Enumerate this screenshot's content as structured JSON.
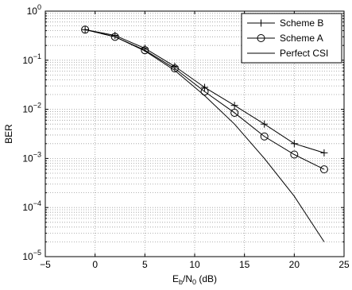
{
  "chart_data": {
    "type": "line",
    "title": "",
    "xlabel": {
      "base": "E",
      "sub1": "b",
      "mid": "/N",
      "sub2": "0",
      "tail": " (dB)"
    },
    "ylabel": "BER",
    "xlim": [
      -5,
      25
    ],
    "ylim": [
      1e-05,
      1
    ],
    "yscale": "log",
    "grid": true,
    "legend_position": "top-right",
    "x_ticks": [
      -5,
      0,
      5,
      10,
      15,
      20,
      25
    ],
    "x_tick_labels": [
      "−5",
      "0",
      "5",
      "10",
      "15",
      "20",
      "25"
    ],
    "y_ticks": [
      {
        "exp": 0,
        "base": "10",
        "sup": "0"
      },
      {
        "exp": -1,
        "base": "10",
        "sup": "−1"
      },
      {
        "exp": -2,
        "base": "10",
        "sup": "−2"
      },
      {
        "exp": -3,
        "base": "10",
        "sup": "−3"
      },
      {
        "exp": -4,
        "base": "10",
        "sup": "−4"
      },
      {
        "exp": -5,
        "base": "10",
        "sup": "−5"
      }
    ],
    "series": [
      {
        "name": "Scheme B",
        "marker": "plus",
        "x": [
          -1,
          2,
          5,
          8,
          11,
          14,
          17,
          20,
          23
        ],
        "y": [
          0.42,
          0.32,
          0.175,
          0.075,
          0.028,
          0.012,
          0.005,
          0.002,
          0.0013
        ]
      },
      {
        "name": "Scheme A",
        "marker": "circle",
        "x": [
          -1,
          2,
          5,
          8,
          11,
          14,
          17,
          20,
          23
        ],
        "y": [
          0.42,
          0.3,
          0.16,
          0.068,
          0.023,
          0.0085,
          0.0028,
          0.0012,
          0.0006
        ]
      },
      {
        "name": "Perfect CSI",
        "marker": "none",
        "x": [
          -1,
          2,
          5,
          8,
          11,
          14,
          17,
          20,
          23
        ],
        "y": [
          0.42,
          0.3,
          0.155,
          0.062,
          0.019,
          0.005,
          0.001,
          0.00017,
          2e-05
        ]
      }
    ],
    "colors": {
      "line": "#000000",
      "grid": "#9a9a9a",
      "background": "#ffffff"
    }
  }
}
